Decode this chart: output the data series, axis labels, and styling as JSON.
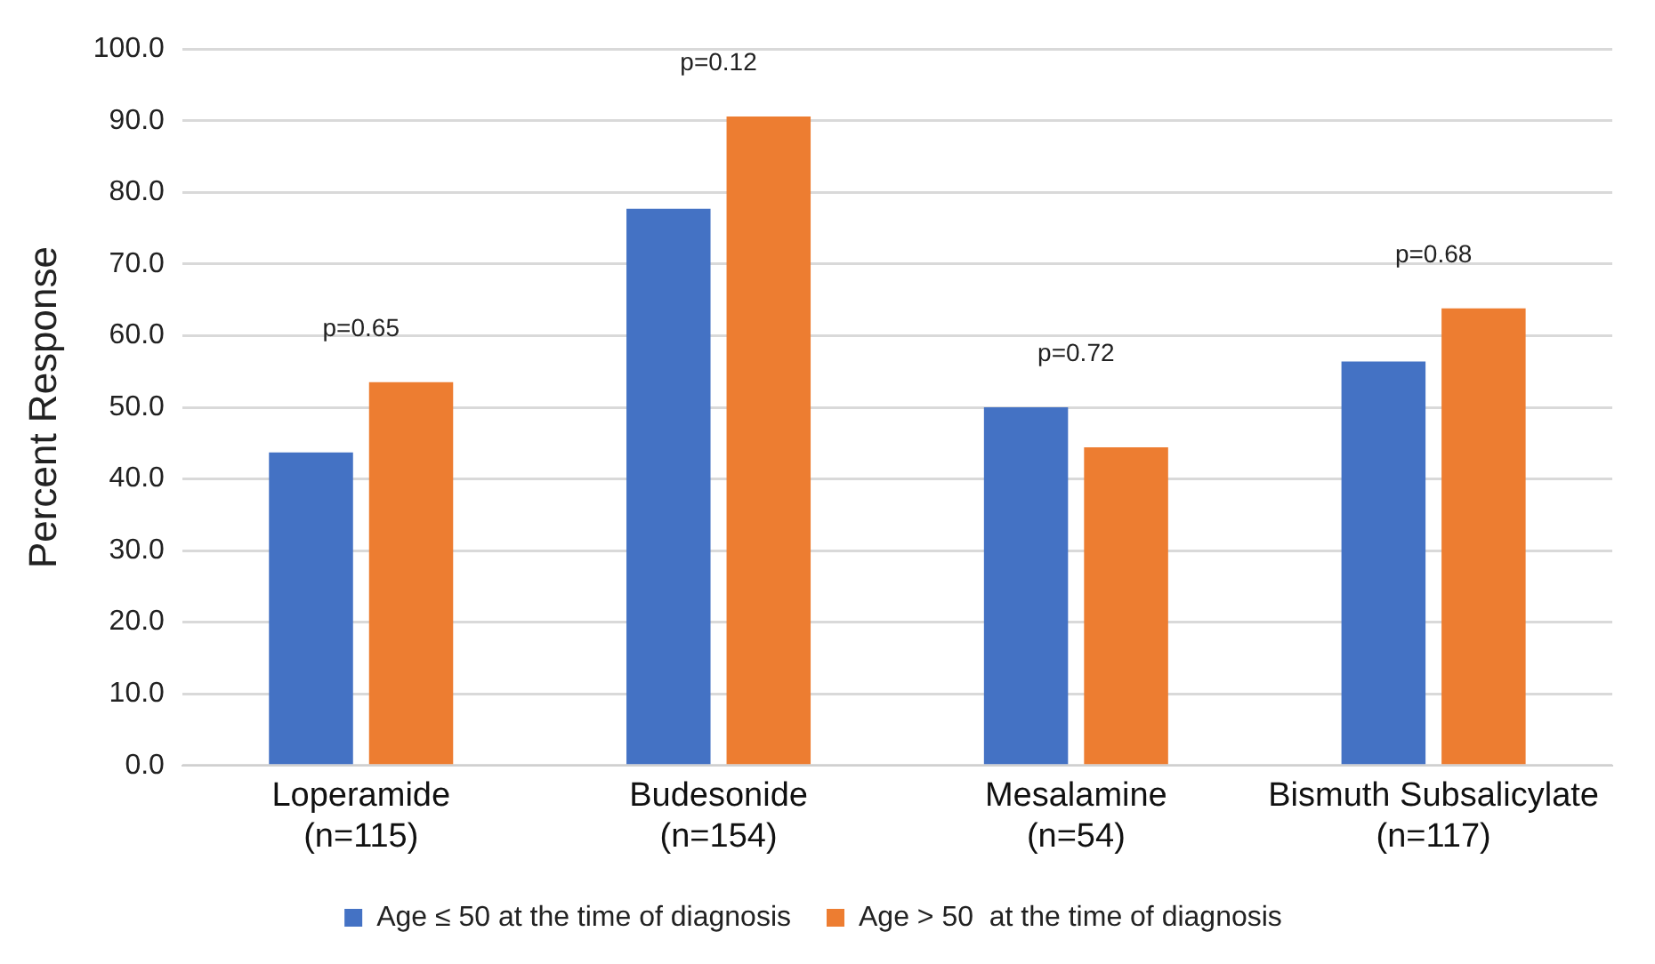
{
  "chart_data": {
    "type": "bar",
    "ylabel": "Percent Response",
    "categories": [
      "Loperamide\n(n=115)",
      "Budesonide\n(n=154)",
      "Mesalamine\n(n=54)",
      "Bismuth Subsalicylate\n(n=117)"
    ],
    "series": [
      {
        "name": "Age ≤ 50 at the time of diagnosis",
        "color": "#4472c4",
        "values": [
          43.7,
          77.7,
          50.0,
          56.4
        ]
      },
      {
        "name": "Age > 50  at the time of diagnosis",
        "color": "#ed7d31",
        "values": [
          53.5,
          90.6,
          44.4,
          63.8
        ]
      }
    ],
    "ylim": [
      0,
      100
    ],
    "yticks": [
      {
        "value": 0,
        "label": "0.0"
      },
      {
        "value": 10,
        "label": "10.0"
      },
      {
        "value": 20,
        "label": "20.0"
      },
      {
        "value": 30,
        "label": "30.0"
      },
      {
        "value": 40,
        "label": "40.0"
      },
      {
        "value": 50,
        "label": "50.0"
      },
      {
        "value": 60,
        "label": "60.0"
      },
      {
        "value": 70,
        "label": "70.0"
      },
      {
        "value": 80,
        "label": "80.0"
      },
      {
        "value": 90,
        "label": "90.0"
      },
      {
        "value": 100,
        "label": "100.0"
      }
    ],
    "grid": "y",
    "legend": "bottom",
    "annotations": [
      "p=0.65",
      "p=0.12",
      "p=0.72",
      "p=0.68"
    ]
  }
}
